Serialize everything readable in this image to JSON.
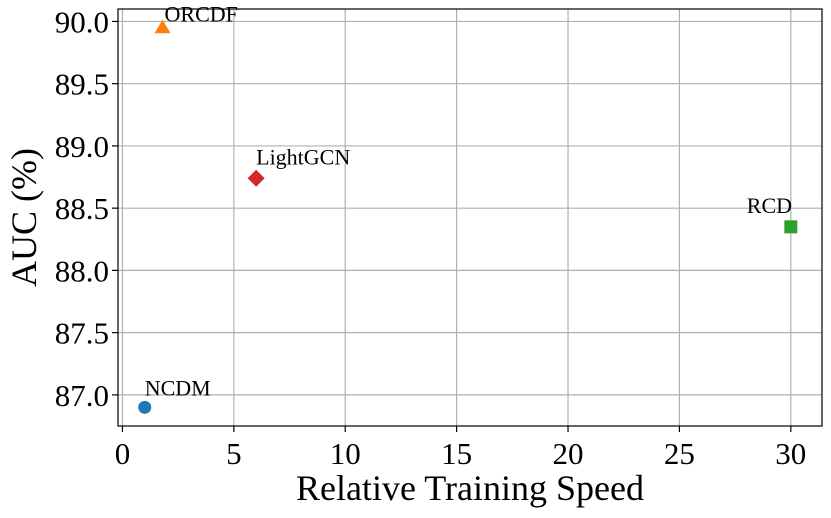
{
  "chart_data": {
    "type": "scatter",
    "xlabel": "Relative Training Speed",
    "ylabel": "AUC (%)",
    "xlim": [
      -0.2,
      31.4
    ],
    "ylim": [
      86.75,
      90.1
    ],
    "xticks": [
      0,
      5,
      10,
      15,
      20,
      25,
      30
    ],
    "yticks": [
      87.0,
      87.5,
      88.0,
      88.5,
      89.0,
      89.5,
      90.0
    ],
    "grid": true,
    "points": [
      {
        "label": "NCDM",
        "x": 1,
        "y": 86.9,
        "color": "#1f77b4",
        "marker": "circle"
      },
      {
        "label": "ORCDF",
        "x": 1.8,
        "y": 89.95,
        "color": "#ff7f0e",
        "marker": "triangle"
      },
      {
        "label": "LightGCN",
        "x": 6,
        "y": 88.74,
        "color": "#d62728",
        "marker": "diamond"
      },
      {
        "label": "RCD",
        "x": 30,
        "y": 88.35,
        "color": "#2ca02c",
        "marker": "square"
      }
    ]
  }
}
